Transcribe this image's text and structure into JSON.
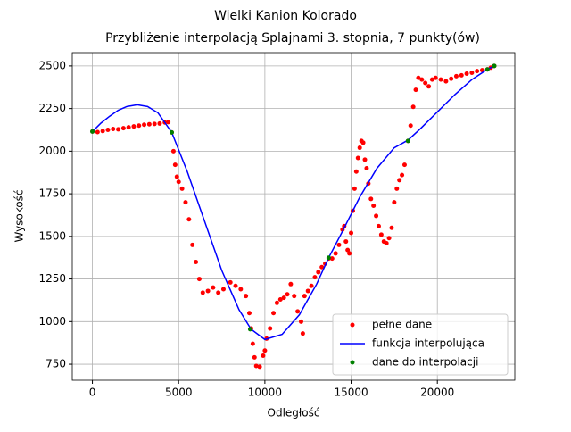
{
  "chart_data": {
    "type": "line",
    "title": "Wielki Kanion Kolorado",
    "subtitle": "Przybliżenie interpolacją Splajnami 3. stopnia, 7 punkty(ów)",
    "x_label": "Odległość",
    "y_label": "Wysokość",
    "xlim": [
      -1167,
      24490
    ],
    "ylim": [
      656,
      2578
    ],
    "xticks": [
      0,
      5000,
      10000,
      15000,
      20000
    ],
    "yticks": [
      750,
      1000,
      1250,
      1500,
      1750,
      2000,
      2250,
      2500
    ],
    "grid": true,
    "legend_position": "lower right",
    "series": [
      {
        "name": "pełne dane",
        "color": "#ff0000",
        "style": "markers",
        "x": [
          0,
          300,
          600,
          900,
          1200,
          1500,
          1800,
          2100,
          2400,
          2700,
          3000,
          3300,
          3600,
          3900,
          4200,
          4400,
          4600,
          4700,
          4800,
          4900,
          5000,
          5200,
          5400,
          5600,
          5800,
          6000,
          6200,
          6400,
          6700,
          7000,
          7300,
          7600,
          8000,
          8300,
          8600,
          8900,
          9100,
          9200,
          9300,
          9400,
          9500,
          9700,
          9900,
          10000,
          10100,
          10300,
          10500,
          10700,
          10900,
          11100,
          11300,
          11500,
          11700,
          11900,
          12100,
          12200,
          12300,
          12500,
          12700,
          12900,
          13100,
          13300,
          13500,
          13700,
          13900,
          14100,
          14300,
          14500,
          14600,
          14700,
          14800,
          14900,
          15000,
          15100,
          15200,
          15300,
          15400,
          15500,
          15600,
          15700,
          15800,
          15900,
          16000,
          16150,
          16300,
          16450,
          16600,
          16750,
          16900,
          17050,
          17200,
          17350,
          17500,
          17650,
          17800,
          17950,
          18100,
          18300,
          18450,
          18600,
          18750,
          18900,
          19100,
          19300,
          19500,
          19700,
          19900,
          20200,
          20500,
          20800,
          21100,
          21400,
          21700,
          22000,
          22300,
          22600,
          22900,
          23100,
          23300
        ],
        "values": [
          2115,
          2112,
          2118,
          2125,
          2130,
          2128,
          2135,
          2140,
          2145,
          2150,
          2155,
          2158,
          2160,
          2162,
          2168,
          2170,
          2110,
          2000,
          1920,
          1850,
          1820,
          1780,
          1700,
          1600,
          1450,
          1350,
          1250,
          1170,
          1180,
          1200,
          1170,
          1190,
          1230,
          1210,
          1190,
          1150,
          1050,
          960,
          870,
          790,
          740,
          735,
          800,
          830,
          900,
          960,
          1050,
          1110,
          1130,
          1140,
          1160,
          1220,
          1150,
          1060,
          1000,
          930,
          1150,
          1180,
          1210,
          1260,
          1290,
          1320,
          1340,
          1370,
          1370,
          1400,
          1450,
          1540,
          1560,
          1470,
          1420,
          1400,
          1520,
          1650,
          1780,
          1880,
          1960,
          2020,
          2060,
          2050,
          1950,
          1900,
          1810,
          1720,
          1680,
          1620,
          1560,
          1510,
          1470,
          1460,
          1490,
          1550,
          1700,
          1780,
          1830,
          1860,
          1920,
          2060,
          2150,
          2260,
          2360,
          2430,
          2420,
          2400,
          2380,
          2420,
          2430,
          2420,
          2410,
          2425,
          2440,
          2445,
          2455,
          2460,
          2470,
          2475,
          2480,
          2490,
          2500
        ]
      },
      {
        "name": "funkcja interpolująca",
        "color": "#0000ff",
        "style": "line",
        "x": [
          0,
          500,
          1000,
          1500,
          2000,
          2600,
          3200,
          3800,
          4600,
          5500,
          6500,
          7500,
          8500,
          9200,
          10000,
          11000,
          12000,
          13000,
          13700,
          14500,
          15500,
          16500,
          17500,
          18300,
          19000,
          20000,
          21000,
          22000,
          22900,
          23300
        ],
        "values": [
          2115,
          2165,
          2205,
          2240,
          2262,
          2272,
          2262,
          2225,
          2110,
          1880,
          1590,
          1300,
          1070,
          955,
          895,
          925,
          1040,
          1220,
          1375,
          1530,
          1730,
          1900,
          2020,
          2065,
          2130,
          2230,
          2330,
          2420,
          2480,
          2500
        ]
      },
      {
        "name": "dane do interpolacji",
        "color": "#008000",
        "style": "markers",
        "x": [
          0,
          4600,
          9150,
          13700,
          18300,
          22900,
          23300
        ],
        "values": [
          2115,
          2110,
          955,
          1375,
          2060,
          2480,
          2500
        ]
      }
    ]
  }
}
